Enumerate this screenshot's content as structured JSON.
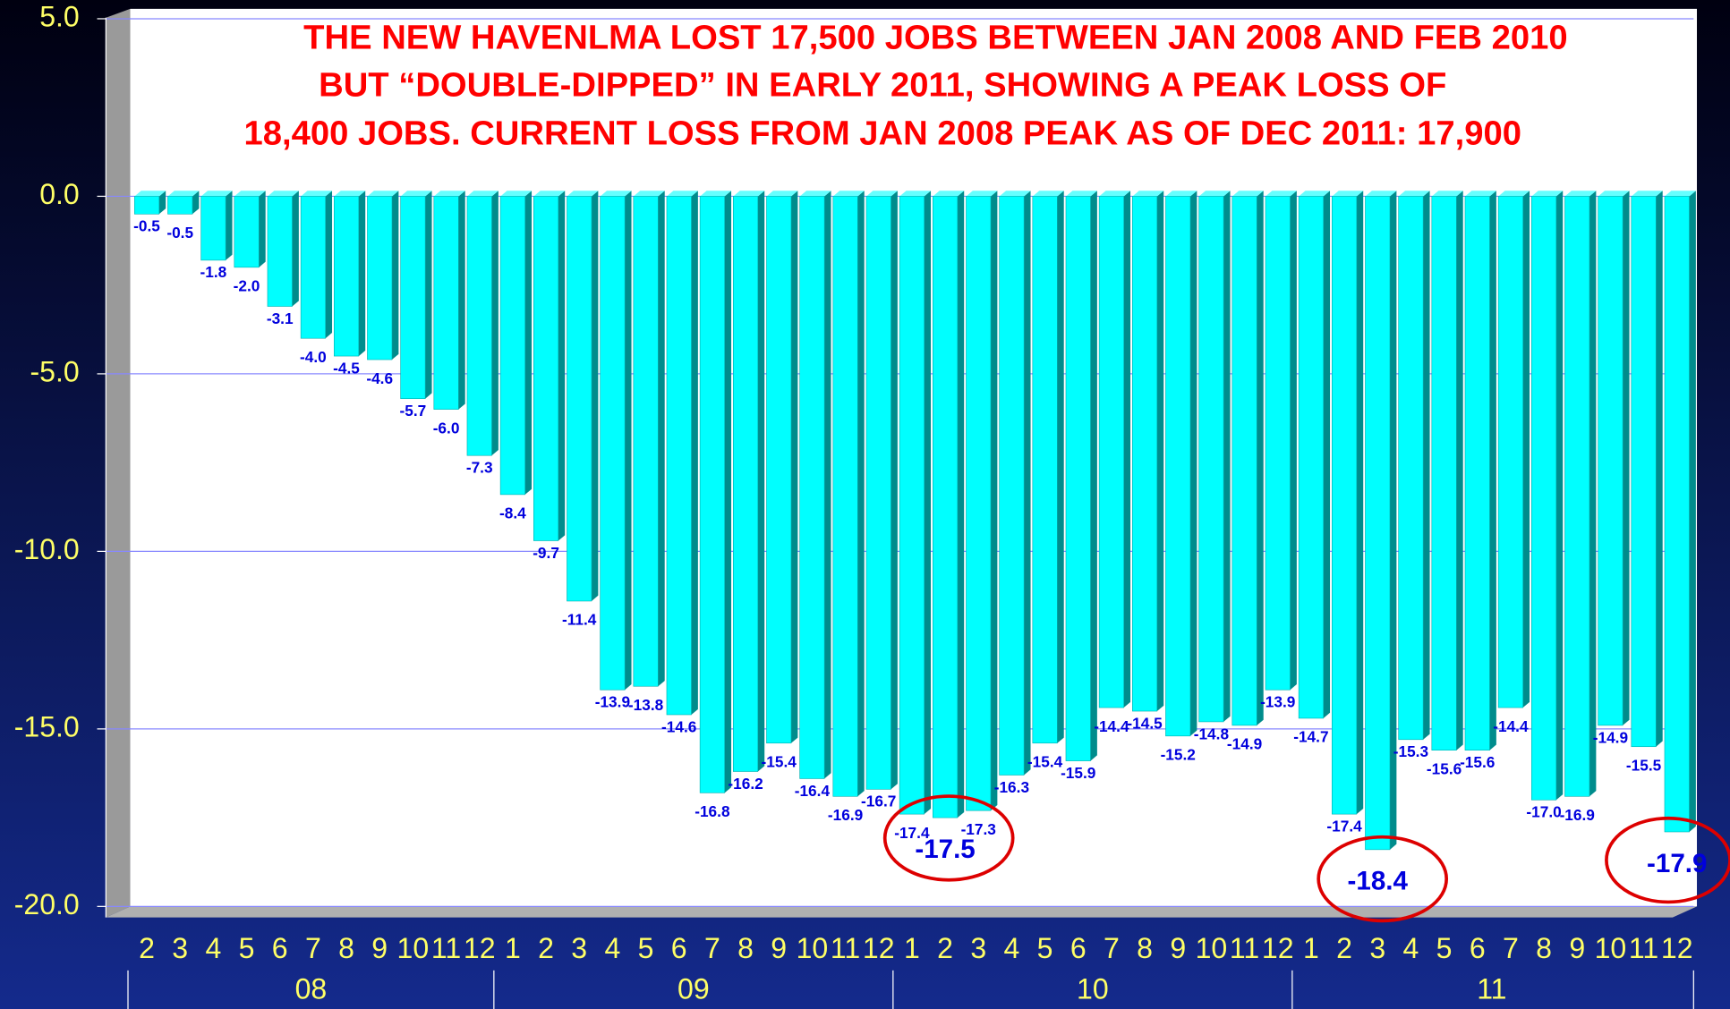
{
  "chart_data": {
    "type": "bar",
    "title_lines": [
      "THE NEW HAVENLMA LOST 17,500 JOBS BETWEEN JAN 2008 AND FEB 2010",
      "BUT “DOUBLE-DIPPED” IN EARLY 2011, SHOWING A PEAK LOSS OF",
      "18,400 JOBS. CURRENT LOSS FROM JAN 2008 PEAK AS OF DEC 2011: 17,900"
    ],
    "categories": [
      "2",
      "3",
      "4",
      "5",
      "6",
      "7",
      "8",
      "9",
      "10",
      "11",
      "12",
      "1",
      "2",
      "3",
      "4",
      "5",
      "6",
      "7",
      "8",
      "9",
      "10",
      "11",
      "12",
      "1",
      "2",
      "3",
      "4",
      "5",
      "6",
      "7",
      "8",
      "9",
      "10",
      "11",
      "12",
      "1",
      "2",
      "3",
      "4",
      "5",
      "6",
      "7",
      "8",
      "9",
      "10",
      "11",
      "12"
    ],
    "groups": [
      "08",
      "09",
      "10",
      "11"
    ],
    "values": [
      -0.5,
      -0.5,
      -1.8,
      -2.0,
      -3.1,
      -4.0,
      -4.5,
      -4.6,
      -5.7,
      -6.0,
      -7.3,
      -8.4,
      -9.7,
      -11.4,
      -13.9,
      -13.8,
      -14.6,
      -16.8,
      -16.2,
      -15.4,
      -16.4,
      -16.9,
      -16.7,
      -17.4,
      -17.5,
      -17.3,
      -16.3,
      -15.4,
      -15.9,
      -14.4,
      -14.5,
      -15.2,
      -14.8,
      -14.9,
      -13.9,
      -14.7,
      -17.4,
      -18.4,
      -15.3,
      -15.6,
      -15.6,
      -14.4,
      -17.0,
      -16.9,
      -14.9,
      -15.5,
      -17.9
    ],
    "value_labels": [
      "-0.5",
      "-0.5",
      "-1.8",
      "-2.0",
      "-3.1",
      "-4.0",
      "-4.5",
      "-4.6",
      "-5.7",
      "-6.0",
      "-7.3",
      "-8.4",
      "-9.7",
      "-11.4",
      "-13.9",
      "-13.8",
      "-14.6",
      "-16.8",
      "-16.2",
      "-15.4",
      "-16.4",
      "-16.9",
      "-16.7",
      "-17.4",
      "-17.5",
      "-17.3",
      "-16.3",
      "-15.4",
      "-15.9",
      "-14.4",
      "-14.5",
      "-15.2",
      "-14.8",
      "-14.9",
      "-13.9",
      "-14.7",
      "-17.4",
      "-18.4",
      "-15.3",
      "-15.6",
      "-15.6",
      "-14.4",
      "-17.0",
      "-16.9",
      "-14.9",
      "-15.5",
      "-17.9"
    ],
    "color": "#00ffff",
    "ylim": [
      -20,
      5
    ],
    "yticks": [
      {
        "value": 5,
        "label": "5.0"
      },
      {
        "value": 0,
        "label": "0.0"
      },
      {
        "value": -5,
        "label": "-5.0"
      },
      {
        "value": -10,
        "label": "-10.0"
      },
      {
        "value": -15,
        "label": "-15.0"
      },
      {
        "value": -20,
        "label": "-20.0"
      }
    ],
    "grid": true
  }
}
